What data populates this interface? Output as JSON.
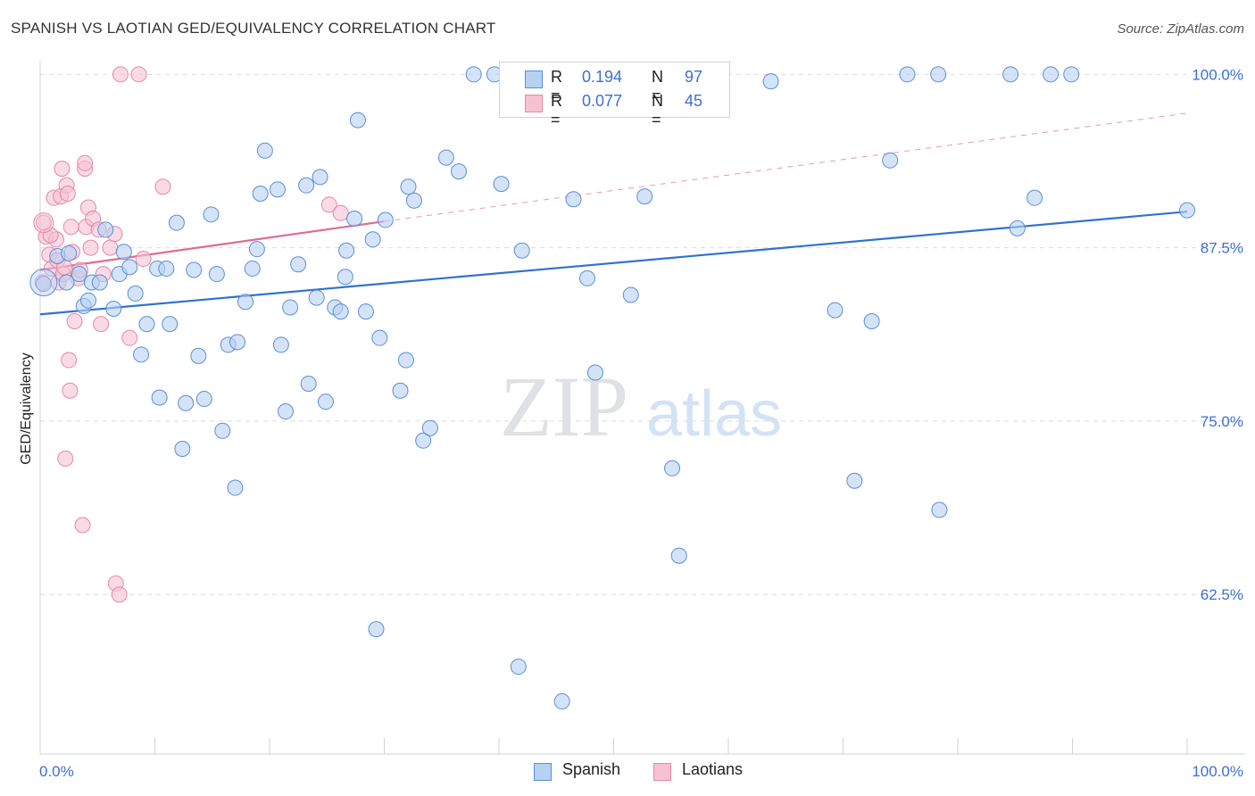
{
  "header": {
    "title": "SPANISH VS LAOTIAN GED/EQUIVALENCY CORRELATION CHART",
    "source": "Source: ZipAtlas.com"
  },
  "colors": {
    "spanish_fill": "#b7d1f2",
    "spanish_stroke": "#5a8fd8",
    "spanish_line": "#2f72d0",
    "laotian_fill": "#f7c1d2",
    "laotian_stroke": "#e389a8",
    "laotian_line": "#e06a94",
    "grid": "#d9dce1",
    "tick_text": "#3b6fd4"
  },
  "legend_top": {
    "rows": [
      {
        "r_label": "R =",
        "r_value": "0.194",
        "n_label": "N =",
        "n_value": "97"
      },
      {
        "r_label": "R =",
        "r_value": "0.077",
        "n_label": "N =",
        "n_value": "45"
      }
    ]
  },
  "legend_bottom": {
    "items": [
      {
        "label": "Spanish"
      },
      {
        "label": "Laotians"
      }
    ]
  },
  "watermark": {
    "zip": "ZIP",
    "atlas": "atlas"
  },
  "chart_data": {
    "type": "scatter",
    "title": "SPANISH VS LAOTIAN GED/EQUIVALENCY CORRELATION CHART",
    "xlabel": "",
    "ylabel": "GED/Equivalency",
    "xlim": [
      0,
      100
    ],
    "ylim": [
      51,
      101.5
    ],
    "x_tick_labels": [
      "0.0%",
      "100.0%"
    ],
    "y_ticks": [
      62.5,
      75.0,
      87.5,
      100.0
    ],
    "y_tick_labels": [
      "62.5%",
      "75.0%",
      "87.5%",
      "100.0%"
    ],
    "grid": true,
    "series": [
      {
        "name": "Spanish",
        "R": 0.194,
        "N": 97,
        "trend": {
          "x": [
            0,
            100
          ],
          "y": [
            82.7,
            90.1
          ]
        },
        "points": [
          [
            0.3,
            84.9
          ],
          [
            1.5,
            86.9
          ],
          [
            2.3,
            85.0
          ],
          [
            2.5,
            87.1
          ],
          [
            3.4,
            85.6
          ],
          [
            3.8,
            83.3
          ],
          [
            4.2,
            83.7
          ],
          [
            4.5,
            85.0
          ],
          [
            5.2,
            85.0
          ],
          [
            5.7,
            88.8
          ],
          [
            6.4,
            83.1
          ],
          [
            6.9,
            85.6
          ],
          [
            7.3,
            87.2
          ],
          [
            7.8,
            86.1
          ],
          [
            8.3,
            84.2
          ],
          [
            8.8,
            79.8
          ],
          [
            9.3,
            82.0
          ],
          [
            10.2,
            86.0
          ],
          [
            10.4,
            76.7
          ],
          [
            11.0,
            86.0
          ],
          [
            11.3,
            82.0
          ],
          [
            11.9,
            89.3
          ],
          [
            12.4,
            73.0
          ],
          [
            12.7,
            76.3
          ],
          [
            13.4,
            85.9
          ],
          [
            13.8,
            79.7
          ],
          [
            14.3,
            76.6
          ],
          [
            14.9,
            89.9
          ],
          [
            15.4,
            85.6
          ],
          [
            15.9,
            74.3
          ],
          [
            16.4,
            80.5
          ],
          [
            17.0,
            70.2
          ],
          [
            17.2,
            80.7
          ],
          [
            17.9,
            83.6
          ],
          [
            18.5,
            86.0
          ],
          [
            18.9,
            87.4
          ],
          [
            19.2,
            91.4
          ],
          [
            19.6,
            94.5
          ],
          [
            20.7,
            91.7
          ],
          [
            21.0,
            80.5
          ],
          [
            21.4,
            75.7
          ],
          [
            21.8,
            83.2
          ],
          [
            22.5,
            86.3
          ],
          [
            23.2,
            92.0
          ],
          [
            23.4,
            77.7
          ],
          [
            24.1,
            83.9
          ],
          [
            24.4,
            92.6
          ],
          [
            24.9,
            76.4
          ],
          [
            25.7,
            83.2
          ],
          [
            26.2,
            82.9
          ],
          [
            26.6,
            85.4
          ],
          [
            26.7,
            87.3
          ],
          [
            27.4,
            89.6
          ],
          [
            27.7,
            96.7
          ],
          [
            28.4,
            82.9
          ],
          [
            29.0,
            88.1
          ],
          [
            29.3,
            60.0
          ],
          [
            29.6,
            81.0
          ],
          [
            30.1,
            89.5
          ],
          [
            31.4,
            77.2
          ],
          [
            31.9,
            79.4
          ],
          [
            32.1,
            91.9
          ],
          [
            32.6,
            90.9
          ],
          [
            33.4,
            73.6
          ],
          [
            34.0,
            74.5
          ],
          [
            35.4,
            94.0
          ],
          [
            36.5,
            93.0
          ],
          [
            37.8,
            100.0
          ],
          [
            39.6,
            100.0
          ],
          [
            40.2,
            92.1
          ],
          [
            41.7,
            57.3
          ],
          [
            42.0,
            87.3
          ],
          [
            45.5,
            54.8
          ],
          [
            46.5,
            91.0
          ],
          [
            47.7,
            85.3
          ],
          [
            48.4,
            78.5
          ],
          [
            51.5,
            84.1
          ],
          [
            52.7,
            91.2
          ],
          [
            55.1,
            71.6
          ],
          [
            55.7,
            65.3
          ],
          [
            57.2,
            100.0
          ],
          [
            63.7,
            99.5
          ],
          [
            69.3,
            83.0
          ],
          [
            71.0,
            70.7
          ],
          [
            72.5,
            82.2
          ],
          [
            74.1,
            93.8
          ],
          [
            75.6,
            100.0
          ],
          [
            78.3,
            100.0
          ],
          [
            78.4,
            68.6
          ],
          [
            84.6,
            100.0
          ],
          [
            85.2,
            88.9
          ],
          [
            86.7,
            91.1
          ],
          [
            88.1,
            100.0
          ],
          [
            89.9,
            100.0
          ],
          [
            100.0,
            90.2
          ]
        ]
      },
      {
        "name": "Laotians",
        "R": 0.077,
        "N": 45,
        "trend": {
          "x": [
            0,
            30
          ],
          "y": [
            85.9,
            89.4
          ]
        },
        "trend_extension": {
          "x": [
            30,
            100
          ],
          "y": [
            89.4,
            97.2
          ]
        },
        "points": [
          [
            0.2,
            85.0
          ],
          [
            0.3,
            89.3
          ],
          [
            0.5,
            88.3
          ],
          [
            0.8,
            87.0
          ],
          [
            1.0,
            86.0
          ],
          [
            1.2,
            91.1
          ],
          [
            1.4,
            88.1
          ],
          [
            1.5,
            86.6
          ],
          [
            1.6,
            85.0
          ],
          [
            1.8,
            91.2
          ],
          [
            1.9,
            93.2
          ],
          [
            2.0,
            85.6
          ],
          [
            2.1,
            86.1
          ],
          [
            2.2,
            72.3
          ],
          [
            2.3,
            92.0
          ],
          [
            2.4,
            91.4
          ],
          [
            2.5,
            79.4
          ],
          [
            2.6,
            77.2
          ],
          [
            2.7,
            89.0
          ],
          [
            2.8,
            87.2
          ],
          [
            3.0,
            82.2
          ],
          [
            3.3,
            85.3
          ],
          [
            3.5,
            85.9
          ],
          [
            3.7,
            67.5
          ],
          [
            3.9,
            93.2
          ],
          [
            3.9,
            93.6
          ],
          [
            4.0,
            89.0
          ],
          [
            4.2,
            90.4
          ],
          [
            4.4,
            87.5
          ],
          [
            4.6,
            89.6
          ],
          [
            5.1,
            88.8
          ],
          [
            5.3,
            82.0
          ],
          [
            5.5,
            85.6
          ],
          [
            6.1,
            87.5
          ],
          [
            6.5,
            88.5
          ],
          [
            6.6,
            63.3
          ],
          [
            6.9,
            62.5
          ],
          [
            7.0,
            100.0
          ],
          [
            7.8,
            81.0
          ],
          [
            8.6,
            100.0
          ],
          [
            9.0,
            86.7
          ],
          [
            10.7,
            91.9
          ],
          [
            25.2,
            90.6
          ],
          [
            26.2,
            90.0
          ],
          [
            0.9,
            88.4
          ]
        ]
      }
    ]
  }
}
